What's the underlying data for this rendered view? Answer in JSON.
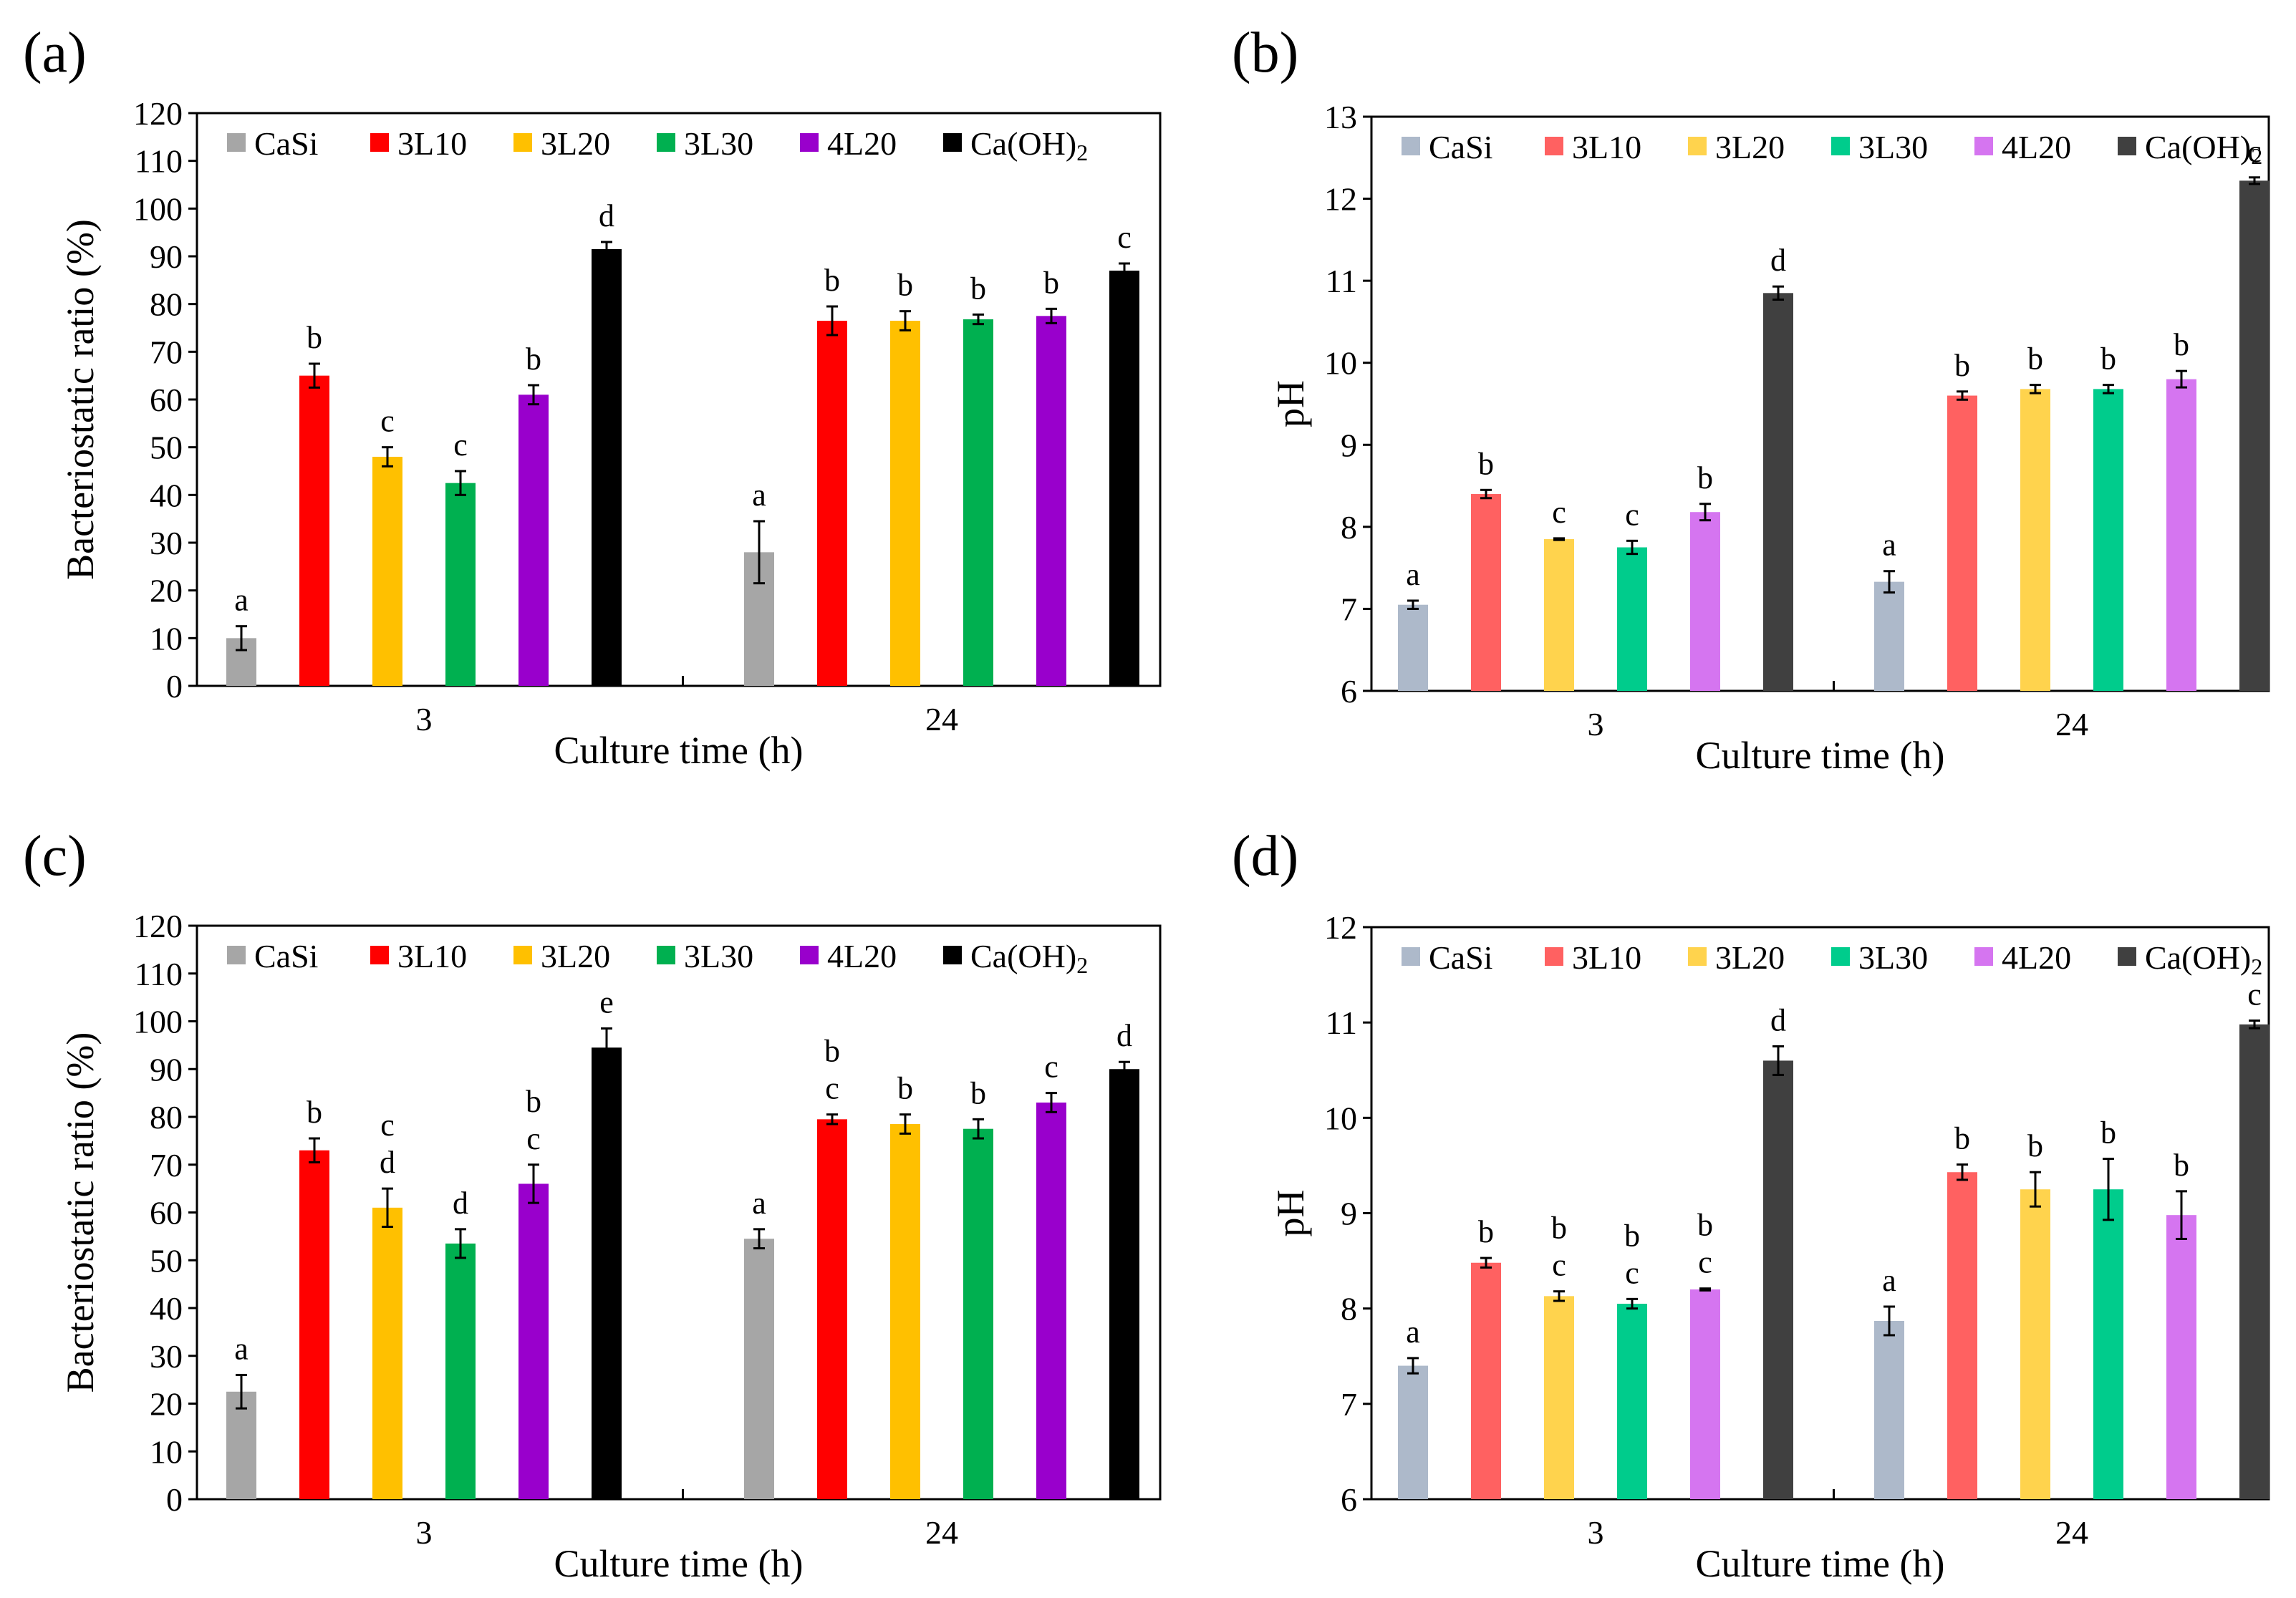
{
  "panels": [
    {
      "id": "a",
      "letter": "(a)",
      "chart_data": {
        "type": "bar",
        "categories": [
          "3",
          "24"
        ],
        "xlabel": "Culture time (h)",
        "ylabel": "Bacteriostatic ratio (%)",
        "ylim": [
          0,
          120
        ],
        "yticks": [
          0,
          10,
          20,
          30,
          40,
          50,
          60,
          70,
          80,
          90,
          100,
          110,
          120
        ],
        "grid": false,
        "legend": "top",
        "series": [
          {
            "name": "CaSi",
            "values": [
              10,
              28
            ],
            "errors": [
              2.5,
              6.5
            ],
            "labels": [
              "a",
              "a"
            ]
          },
          {
            "name": "3L10",
            "values": [
              65,
              76.5
            ],
            "errors": [
              2.5,
              3
            ],
            "labels": [
              "b",
              "b"
            ]
          },
          {
            "name": "3L20",
            "values": [
              48,
              76.5
            ],
            "errors": [
              2,
              2
            ],
            "labels": [
              "c",
              "b"
            ]
          },
          {
            "name": "3L30",
            "values": [
              42.5,
              76.8
            ],
            "errors": [
              2.5,
              1
            ],
            "labels": [
              "c",
              "b"
            ]
          },
          {
            "name": "4L20",
            "values": [
              61,
              77.5
            ],
            "errors": [
              2,
              1.5
            ],
            "labels": [
              "b",
              "b"
            ]
          },
          {
            "name": "Ca(OH)2",
            "values": [
              91.5,
              87
            ],
            "errors": [
              1.5,
              1.5
            ],
            "labels": [
              "d",
              "c"
            ]
          }
        ]
      }
    },
    {
      "id": "b",
      "letter": "(b)",
      "chart_data": {
        "type": "bar",
        "categories": [
          "3",
          "24"
        ],
        "xlabel": "Culture time (h)",
        "ylabel": "pH",
        "ylim": [
          6,
          13
        ],
        "yticks": [
          6,
          7,
          8,
          9,
          10,
          11,
          12,
          13
        ],
        "grid": false,
        "legend": "top",
        "series": [
          {
            "name": "CaSi",
            "values": [
              7.05,
              7.33
            ],
            "errors": [
              0.05,
              0.13
            ],
            "labels": [
              "a",
              "a"
            ]
          },
          {
            "name": "3L10",
            "values": [
              8.4,
              9.6
            ],
            "errors": [
              0.05,
              0.05
            ],
            "labels": [
              "b",
              "b"
            ]
          },
          {
            "name": "3L20",
            "values": [
              7.85,
              9.68
            ],
            "errors": [
              0.01,
              0.05
            ],
            "labels": [
              "c",
              "b"
            ]
          },
          {
            "name": "3L30",
            "values": [
              7.75,
              9.68
            ],
            "errors": [
              0.08,
              0.05
            ],
            "labels": [
              "c",
              "b"
            ]
          },
          {
            "name": "4L20",
            "values": [
              8.18,
              9.8
            ],
            "errors": [
              0.1,
              0.1
            ],
            "labels": [
              "b",
              "b"
            ]
          },
          {
            "name": "Ca(OH)2",
            "values": [
              10.85,
              12.22
            ],
            "errors": [
              0.08,
              0.04
            ],
            "labels": [
              "d",
              "c"
            ]
          }
        ]
      }
    },
    {
      "id": "c",
      "letter": "(c)",
      "chart_data": {
        "type": "bar",
        "categories": [
          "3",
          "24"
        ],
        "xlabel": "Culture time (h)",
        "ylabel": "Bacteriostatic ratio (%)",
        "ylim": [
          0,
          120
        ],
        "yticks": [
          0,
          10,
          20,
          30,
          40,
          50,
          60,
          70,
          80,
          90,
          100,
          110,
          120
        ],
        "grid": false,
        "legend": "top",
        "series": [
          {
            "name": "CaSi",
            "values": [
              22.5,
              54.5
            ],
            "errors": [
              3.5,
              2
            ],
            "labels": [
              "a",
              "a"
            ]
          },
          {
            "name": "3L10",
            "values": [
              73,
              79.5
            ],
            "errors": [
              2.5,
              1
            ],
            "labels": [
              "b",
              "b c"
            ]
          },
          {
            "name": "3L20",
            "values": [
              61,
              78.5
            ],
            "errors": [
              4,
              2
            ],
            "labels": [
              "c d",
              "b"
            ]
          },
          {
            "name": "3L30",
            "values": [
              53.5,
              77.5
            ],
            "errors": [
              3,
              2
            ],
            "labels": [
              "d",
              "b"
            ]
          },
          {
            "name": "4L20",
            "values": [
              66,
              83
            ],
            "errors": [
              4,
              2
            ],
            "labels": [
              "b c",
              "c"
            ]
          },
          {
            "name": "Ca(OH)2",
            "values": [
              94.5,
              90
            ],
            "errors": [
              4,
              1.5
            ],
            "labels": [
              "e",
              "d"
            ]
          }
        ]
      }
    },
    {
      "id": "d",
      "letter": "(d)",
      "chart_data": {
        "type": "bar",
        "categories": [
          "3",
          "24"
        ],
        "xlabel": "Culture time (h)",
        "ylabel": "pH",
        "ylim": [
          6,
          12
        ],
        "yticks": [
          6,
          7,
          8,
          9,
          10,
          11,
          12
        ],
        "grid": false,
        "legend": "top",
        "series": [
          {
            "name": "CaSi",
            "values": [
              7.4,
              7.87
            ],
            "errors": [
              0.08,
              0.15
            ],
            "labels": [
              "a",
              "a"
            ]
          },
          {
            "name": "3L10",
            "values": [
              8.48,
              9.43
            ],
            "errors": [
              0.05,
              0.08
            ],
            "labels": [
              "b",
              "b"
            ]
          },
          {
            "name": "3L20",
            "values": [
              8.13,
              9.25
            ],
            "errors": [
              0.05,
              0.18
            ],
            "labels": [
              "b c",
              "b"
            ]
          },
          {
            "name": "3L30",
            "values": [
              8.05,
              9.25
            ],
            "errors": [
              0.05,
              0.32
            ],
            "labels": [
              "b c",
              "b"
            ]
          },
          {
            "name": "4L20",
            "values": [
              8.2,
              8.98
            ],
            "errors": [
              0.01,
              0.25
            ],
            "labels": [
              "b c",
              "b"
            ]
          },
          {
            "name": "Ca(OH)2",
            "values": [
              10.6,
              10.98
            ],
            "errors": [
              0.15,
              0.04
            ],
            "labels": [
              "d",
              "c"
            ]
          }
        ]
      }
    }
  ],
  "colors": {
    "bacteriostatic": [
      "#a6a6a6",
      "#ff0000",
      "#ffc000",
      "#00b050",
      "#9900cc",
      "#000000"
    ],
    "ph": [
      "#adb9ca",
      "#ff6161",
      "#ffd34d",
      "#00cc8c",
      "#d575f0",
      "#404040"
    ]
  }
}
